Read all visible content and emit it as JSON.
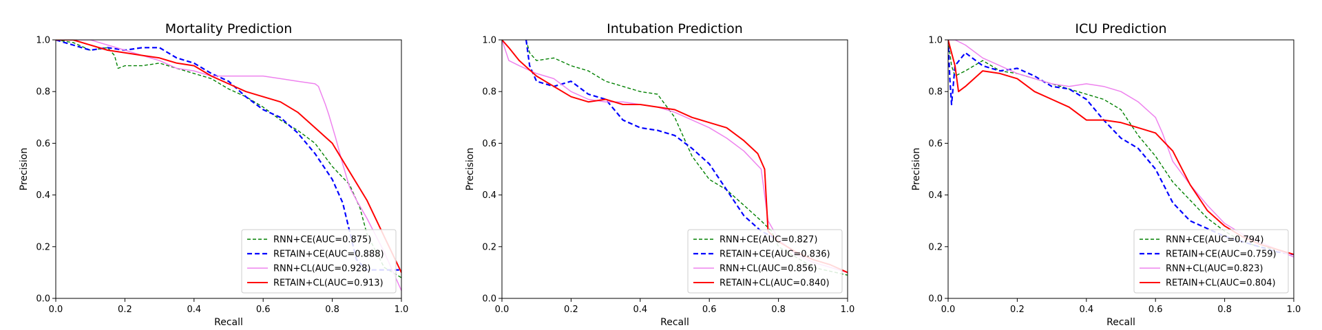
{
  "chart_data": [
    {
      "type": "line",
      "title": "Mortality Prediction",
      "xlabel": "Recall",
      "ylabel": "Precision",
      "xlim": [
        0,
        1
      ],
      "ylim": [
        0,
        1
      ],
      "xticks": [
        "0.0",
        "0.2",
        "0.4",
        "0.6",
        "0.8",
        "1.0"
      ],
      "yticks": [
        "0.0",
        "0.2",
        "0.4",
        "0.6",
        "0.8",
        "1.0"
      ],
      "legend_position": "lower right",
      "series": [
        {
          "name": "RNN+CE(AUC=0.875)",
          "color": "#008000",
          "dash": "dashed",
          "x": [
            0.0,
            0.05,
            0.1,
            0.15,
            0.17,
            0.18,
            0.2,
            0.25,
            0.3,
            0.35,
            0.4,
            0.45,
            0.5,
            0.55,
            0.6,
            0.65,
            0.7,
            0.75,
            0.8,
            0.85,
            0.88,
            0.9,
            0.95,
            1.0
          ],
          "y": [
            1.0,
            0.99,
            0.96,
            0.97,
            0.94,
            0.89,
            0.9,
            0.9,
            0.91,
            0.89,
            0.87,
            0.85,
            0.81,
            0.78,
            0.74,
            0.69,
            0.65,
            0.6,
            0.51,
            0.44,
            0.35,
            0.25,
            0.12,
            0.08
          ]
        },
        {
          "name": "RETAIN+CE(AUC=0.888)",
          "color": "#0000ff",
          "dash": "dashed",
          "x": [
            0.0,
            0.05,
            0.1,
            0.15,
            0.2,
            0.25,
            0.3,
            0.35,
            0.4,
            0.45,
            0.5,
            0.55,
            0.6,
            0.65,
            0.7,
            0.75,
            0.8,
            0.83,
            0.85,
            0.87,
            0.9,
            0.95,
            1.0
          ],
          "y": [
            1.0,
            0.98,
            0.96,
            0.97,
            0.96,
            0.97,
            0.97,
            0.93,
            0.91,
            0.87,
            0.84,
            0.78,
            0.73,
            0.7,
            0.64,
            0.56,
            0.46,
            0.37,
            0.26,
            0.15,
            0.11,
            0.11,
            0.11
          ]
        },
        {
          "name": "RNN+CL(AUC=0.928)",
          "color": "#ee82ee",
          "dash": "solid",
          "x": [
            0.0,
            0.05,
            0.1,
            0.15,
            0.2,
            0.25,
            0.3,
            0.35,
            0.4,
            0.45,
            0.5,
            0.55,
            0.6,
            0.65,
            0.7,
            0.75,
            0.76,
            0.78,
            0.79,
            0.81,
            0.83,
            0.85,
            0.87,
            0.9,
            0.95,
            1.0
          ],
          "y": [
            1.0,
            1.0,
            1.0,
            0.98,
            0.96,
            0.94,
            0.92,
            0.89,
            0.88,
            0.86,
            0.86,
            0.86,
            0.86,
            0.85,
            0.84,
            0.83,
            0.82,
            0.75,
            0.71,
            0.62,
            0.52,
            0.43,
            0.38,
            0.31,
            0.18,
            0.03
          ]
        },
        {
          "name": "RETAIN+CL(AUC=0.913)",
          "color": "#ff0000",
          "dash": "solid",
          "x": [
            0.0,
            0.05,
            0.1,
            0.15,
            0.2,
            0.25,
            0.3,
            0.35,
            0.4,
            0.45,
            0.5,
            0.55,
            0.6,
            0.65,
            0.7,
            0.75,
            0.8,
            0.85,
            0.9,
            0.95,
            1.0
          ],
          "y": [
            1.0,
            1.0,
            0.98,
            0.96,
            0.95,
            0.94,
            0.93,
            0.91,
            0.9,
            0.86,
            0.83,
            0.8,
            0.78,
            0.76,
            0.72,
            0.66,
            0.6,
            0.49,
            0.38,
            0.24,
            0.1
          ]
        }
      ]
    },
    {
      "type": "line",
      "title": "Intubation Prediction",
      "xlabel": "Recall",
      "ylabel": "Precision",
      "xlim": [
        0,
        1
      ],
      "ylim": [
        0,
        1
      ],
      "xticks": [
        "0.0",
        "0.2",
        "0.4",
        "0.6",
        "0.8",
        "1.0"
      ],
      "yticks": [
        "0.0",
        "0.2",
        "0.4",
        "0.6",
        "0.8",
        "1.0"
      ],
      "legend_position": "lower right",
      "series": [
        {
          "name": "RNN+CE(AUC=0.827)",
          "color": "#008000",
          "dash": "dashed",
          "x": [
            0.07,
            0.08,
            0.1,
            0.15,
            0.2,
            0.25,
            0.3,
            0.35,
            0.4,
            0.45,
            0.5,
            0.55,
            0.6,
            0.65,
            0.7,
            0.75,
            0.78,
            0.8,
            0.85,
            0.9,
            1.0
          ],
          "y": [
            1.0,
            0.95,
            0.92,
            0.93,
            0.9,
            0.88,
            0.84,
            0.82,
            0.8,
            0.79,
            0.7,
            0.55,
            0.46,
            0.42,
            0.36,
            0.3,
            0.26,
            0.2,
            0.16,
            0.12,
            0.09
          ]
        },
        {
          "name": "RETAIN+CE(AUC=0.836)",
          "color": "#0000ff",
          "dash": "dashed",
          "x": [
            0.07,
            0.08,
            0.1,
            0.15,
            0.2,
            0.25,
            0.3,
            0.35,
            0.4,
            0.45,
            0.5,
            0.55,
            0.6,
            0.65,
            0.7,
            0.75,
            0.78,
            0.8
          ],
          "y": [
            1.0,
            0.9,
            0.84,
            0.82,
            0.84,
            0.79,
            0.77,
            0.69,
            0.66,
            0.65,
            0.63,
            0.58,
            0.52,
            0.42,
            0.32,
            0.26,
            0.24,
            0.22
          ]
        },
        {
          "name": "RNN+CL(AUC=0.856)",
          "color": "#ee82ee",
          "dash": "solid",
          "x": [
            0.0,
            0.02,
            0.05,
            0.1,
            0.15,
            0.2,
            0.25,
            0.3,
            0.35,
            0.4,
            0.45,
            0.5,
            0.55,
            0.6,
            0.65,
            0.7,
            0.75,
            0.77,
            0.8,
            0.85,
            0.9,
            0.95,
            1.0
          ],
          "y": [
            1.0,
            0.92,
            0.9,
            0.87,
            0.85,
            0.8,
            0.77,
            0.76,
            0.76,
            0.75,
            0.74,
            0.72,
            0.69,
            0.66,
            0.62,
            0.57,
            0.5,
            0.3,
            0.23,
            0.17,
            0.14,
            0.12,
            0.1
          ]
        },
        {
          "name": "RETAIN+CL(AUC=0.840)",
          "color": "#ff0000",
          "dash": "solid",
          "x": [
            0.0,
            0.02,
            0.05,
            0.1,
            0.15,
            0.2,
            0.25,
            0.3,
            0.35,
            0.4,
            0.45,
            0.5,
            0.55,
            0.6,
            0.65,
            0.7,
            0.74,
            0.76,
            0.77,
            0.8,
            0.85,
            0.9,
            0.95,
            1.0
          ],
          "y": [
            1.0,
            0.97,
            0.92,
            0.86,
            0.82,
            0.78,
            0.76,
            0.77,
            0.75,
            0.75,
            0.74,
            0.73,
            0.7,
            0.68,
            0.66,
            0.61,
            0.56,
            0.5,
            0.26,
            0.22,
            0.18,
            0.15,
            0.13,
            0.1
          ]
        }
      ]
    },
    {
      "type": "line",
      "title": "ICU Prediction",
      "xlabel": "Recall",
      "ylabel": "Precision",
      "xlim": [
        0,
        1
      ],
      "ylim": [
        0,
        1
      ],
      "xticks": [
        "0.0",
        "0.2",
        "0.4",
        "0.6",
        "0.8",
        "1.0"
      ],
      "yticks": [
        "0.0",
        "0.2",
        "0.4",
        "0.6",
        "0.8",
        "1.0"
      ],
      "legend_position": "lower right",
      "series": [
        {
          "name": "RNN+CE(AUC=0.794)",
          "color": "#008000",
          "dash": "dashed",
          "x": [
            0.0,
            0.01,
            0.02,
            0.05,
            0.1,
            0.15,
            0.2,
            0.25,
            0.3,
            0.35,
            0.4,
            0.45,
            0.5,
            0.55,
            0.6,
            0.65,
            0.7,
            0.75,
            0.8,
            0.85,
            0.9,
            0.95,
            1.0
          ],
          "y": [
            1.0,
            0.9,
            0.86,
            0.88,
            0.92,
            0.88,
            0.87,
            0.85,
            0.83,
            0.81,
            0.79,
            0.77,
            0.73,
            0.63,
            0.55,
            0.45,
            0.38,
            0.31,
            0.26,
            0.22,
            0.2,
            0.19,
            0.17
          ]
        },
        {
          "name": "RETAIN+CE(AUC=0.759)",
          "color": "#0000ff",
          "dash": "dashed",
          "x": [
            0.0,
            0.005,
            0.01,
            0.02,
            0.05,
            0.1,
            0.15,
            0.2,
            0.25,
            0.3,
            0.35,
            0.4,
            0.45,
            0.5,
            0.55,
            0.6,
            0.65,
            0.7,
            0.75,
            0.8,
            0.85,
            0.9,
            0.95,
            1.0
          ],
          "y": [
            1.0,
            0.85,
            0.75,
            0.9,
            0.95,
            0.9,
            0.88,
            0.89,
            0.86,
            0.82,
            0.81,
            0.77,
            0.69,
            0.62,
            0.58,
            0.5,
            0.37,
            0.3,
            0.27,
            0.24,
            0.22,
            0.2,
            0.18,
            0.17
          ]
        },
        {
          "name": "RNN+CL(AUC=0.823)",
          "color": "#ee82ee",
          "dash": "solid",
          "x": [
            0.0,
            0.02,
            0.05,
            0.1,
            0.15,
            0.2,
            0.25,
            0.3,
            0.35,
            0.4,
            0.45,
            0.5,
            0.55,
            0.6,
            0.62,
            0.65,
            0.7,
            0.75,
            0.8,
            0.85,
            0.9,
            0.95,
            1.0
          ],
          "y": [
            1.0,
            1.0,
            0.98,
            0.93,
            0.9,
            0.87,
            0.85,
            0.83,
            0.82,
            0.83,
            0.82,
            0.8,
            0.76,
            0.7,
            0.64,
            0.53,
            0.44,
            0.36,
            0.29,
            0.25,
            0.22,
            0.19,
            0.16
          ]
        },
        {
          "name": "RETAIN+CL(AUC=0.804)",
          "color": "#ff0000",
          "dash": "solid",
          "x": [
            0.0,
            0.02,
            0.03,
            0.05,
            0.1,
            0.15,
            0.2,
            0.25,
            0.3,
            0.35,
            0.4,
            0.45,
            0.5,
            0.55,
            0.6,
            0.65,
            0.7,
            0.75,
            0.8,
            0.85,
            0.9,
            0.95,
            1.0
          ],
          "y": [
            1.0,
            0.9,
            0.8,
            0.82,
            0.88,
            0.87,
            0.85,
            0.8,
            0.77,
            0.74,
            0.69,
            0.69,
            0.68,
            0.66,
            0.64,
            0.57,
            0.44,
            0.34,
            0.28,
            0.24,
            0.21,
            0.19,
            0.17
          ]
        }
      ]
    }
  ]
}
